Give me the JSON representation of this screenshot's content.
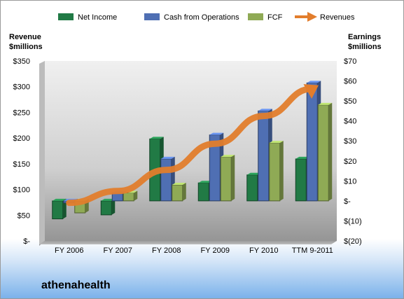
{
  "company": "athenahealth",
  "chart_data": {
    "type": "bar",
    "categories": [
      "FY 2006",
      "FY 2007",
      "FY 2008",
      "FY 2009",
      "FY 2010",
      "TTM 9-2011"
    ],
    "left_axis": {
      "title_line1": "Revenue",
      "title_line2": "$millions",
      "ylim": [
        0,
        350
      ],
      "ticks": [
        0,
        50,
        100,
        150,
        200,
        250,
        300,
        350
      ],
      "tick_labels": [
        "$-",
        "$50",
        "$100",
        "$150",
        "$200",
        "$250",
        "$300",
        "$350"
      ]
    },
    "right_axis": {
      "title_line1": "Earnings",
      "title_line2": "$millions",
      "ylim": [
        -20,
        70
      ],
      "ticks": [
        -20,
        -10,
        0,
        10,
        20,
        30,
        40,
        50,
        60,
        70
      ],
      "tick_labels": [
        "$(20)",
        "$(10)",
        "$-",
        "$10",
        "$20",
        "$30",
        "$40",
        "$50",
        "$60",
        "$70"
      ]
    },
    "series": [
      {
        "name": "Net Income",
        "axis": "right",
        "kind": "bar",
        "color": "#217a45",
        "values": [
          -9,
          -7,
          31,
          9,
          13,
          21
        ]
      },
      {
        "name": "Cash from Operations",
        "axis": "right",
        "kind": "bar",
        "color": "#4f6fb3",
        "values": [
          -1,
          4,
          21,
          33,
          45,
          59
        ]
      },
      {
        "name": "FCF",
        "axis": "right",
        "kind": "bar",
        "color": "#8faa55",
        "values": [
          -6,
          4,
          8,
          22,
          29,
          48
        ]
      },
      {
        "name": "Revenues",
        "axis": "left",
        "kind": "line",
        "color": "#e27d2c",
        "values": [
          74,
          97,
          138,
          189,
          243,
          296
        ]
      }
    ],
    "legend_position": "top",
    "grid": false
  }
}
